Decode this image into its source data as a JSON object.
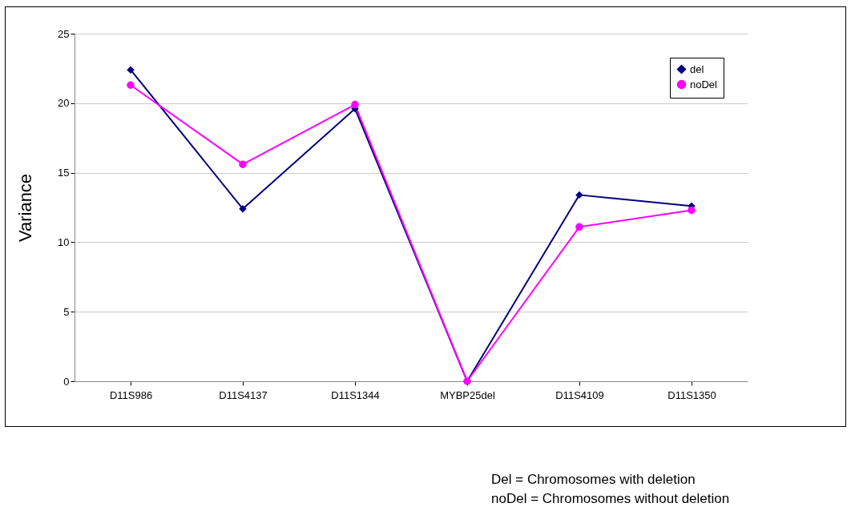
{
  "chart_data": {
    "type": "line",
    "ylabel": "Variance",
    "categories": [
      "D11S986",
      "D11S4137",
      "D11S1344",
      "MYBP25del",
      "D11S4109",
      "D11S1350"
    ],
    "series": [
      {
        "name": "del",
        "color": "#000080",
        "marker": "diamond",
        "values": [
          22.4,
          12.4,
          19.6,
          0,
          13.4,
          12.6
        ]
      },
      {
        "name": "noDel",
        "color": "#ff00ff",
        "marker": "circle",
        "values": [
          21.3,
          15.6,
          19.9,
          0,
          11.1,
          12.3
        ]
      }
    ],
    "ylim": [
      0,
      25
    ],
    "yticks": [
      0,
      5,
      10,
      15,
      20,
      25
    ],
    "grid": "y",
    "legend": "top right",
    "line_style": "solid",
    "annotations": [
      "Del      = Chromosomes with deletion",
      "noDel = Chromosomes without deletion"
    ]
  }
}
